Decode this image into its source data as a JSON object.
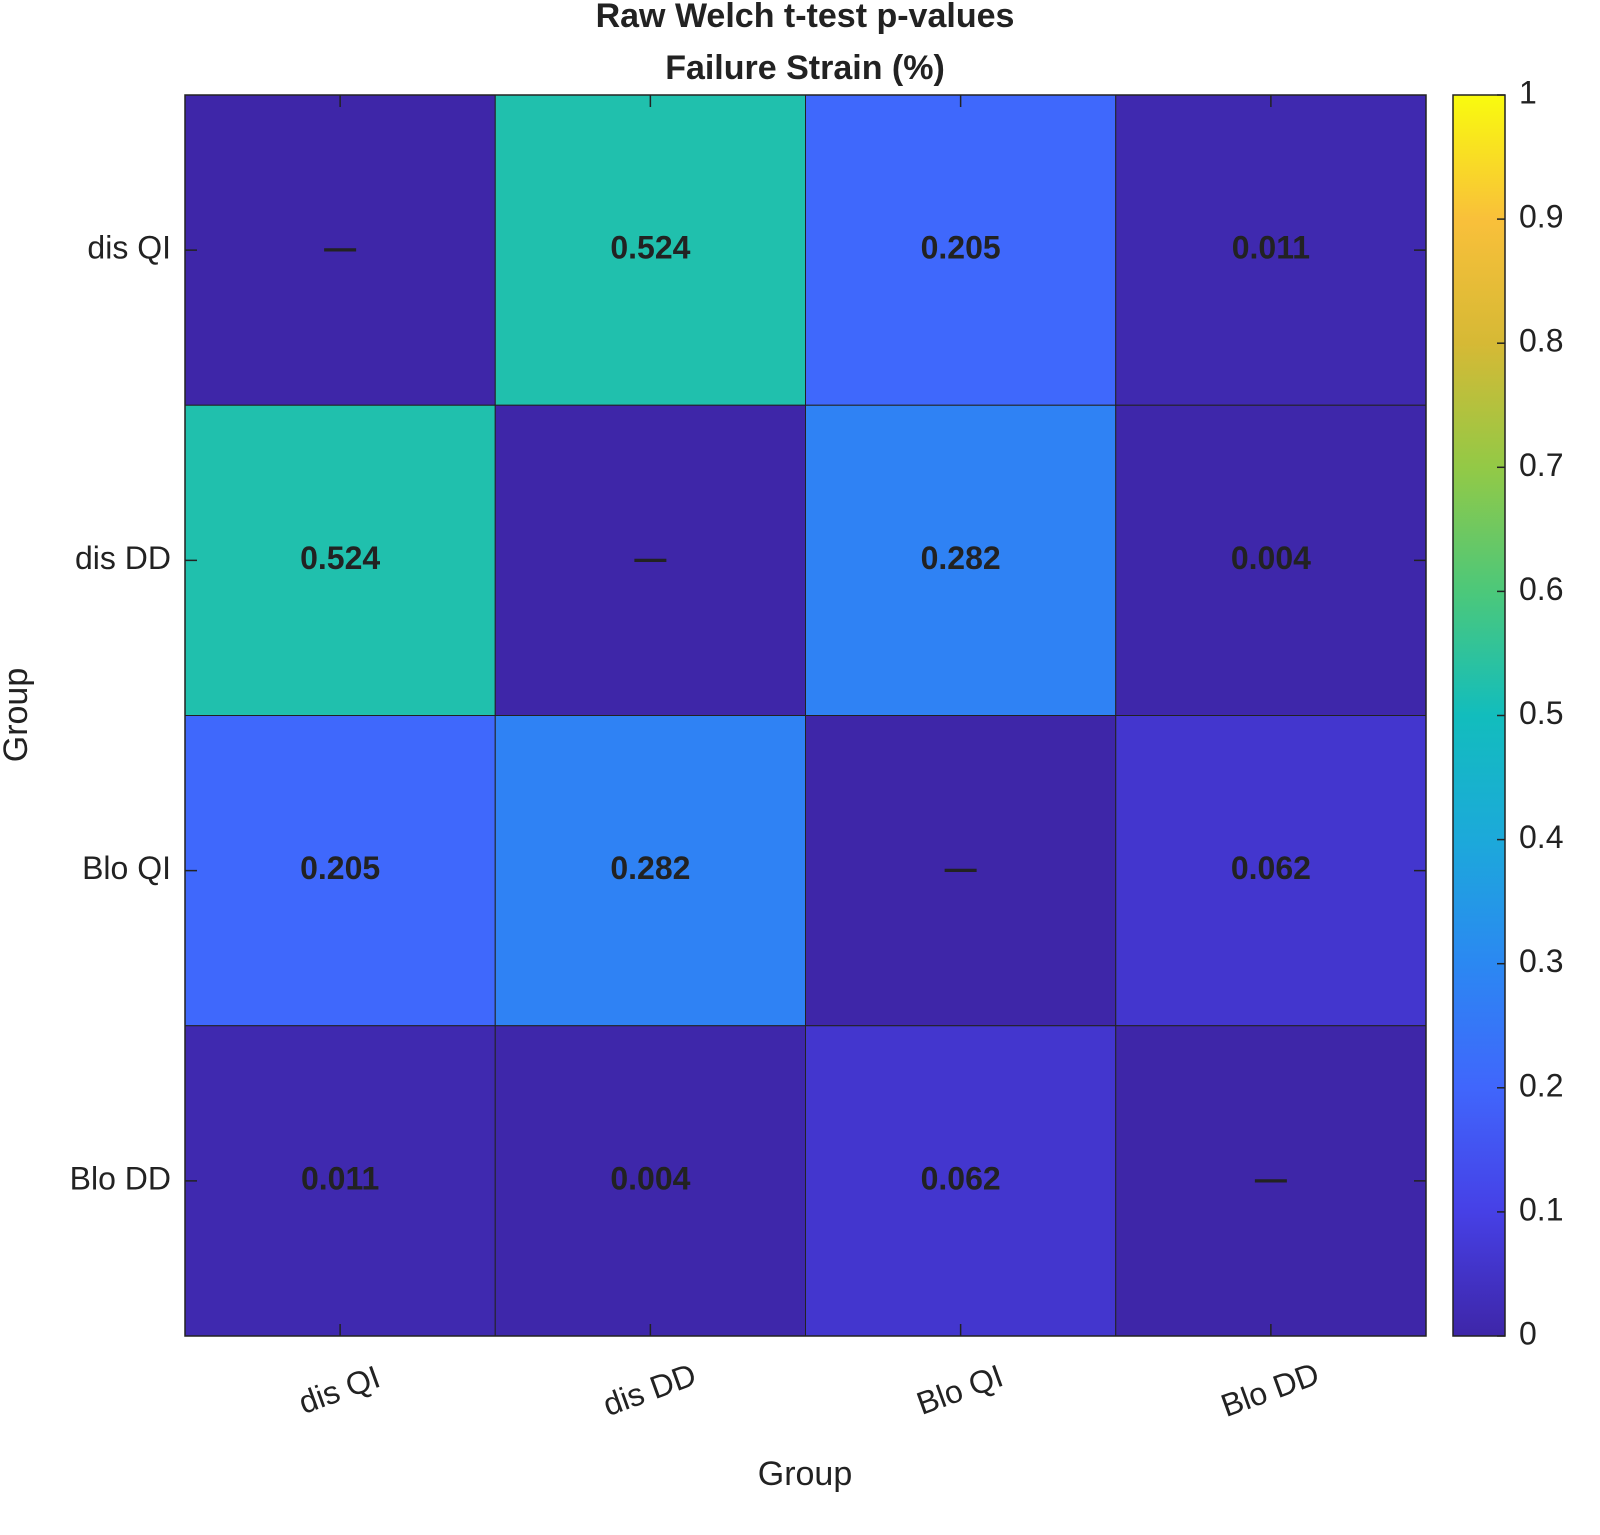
{
  "chart_data": {
    "type": "heatmap",
    "title": "Raw Welch t-test p-values",
    "subtitle": "Failure Strain (%)",
    "x_label": "Group",
    "y_label": "Group",
    "x_categories": [
      "dis QI",
      "dis DD",
      "Blo QI",
      "Blo DD"
    ],
    "y_categories": [
      "dis QI",
      "dis DD",
      "Blo QI",
      "Blo DD"
    ],
    "values": [
      [
        null,
        0.524,
        0.205,
        0.011
      ],
      [
        0.524,
        null,
        0.282,
        0.004
      ],
      [
        0.205,
        0.282,
        null,
        0.062
      ],
      [
        0.011,
        0.004,
        0.062,
        null
      ]
    ],
    "diagonal_label": "—",
    "clim": [
      0,
      1
    ],
    "cticks": [
      0,
      0.1,
      0.2,
      0.3,
      0.4,
      0.5,
      0.6,
      0.7,
      0.8,
      0.9,
      1
    ],
    "colormap": [
      "#3e26a8",
      "#4640e6",
      "#4066fc",
      "#2b88f2",
      "#1ca9da",
      "#12bdbd",
      "#4cc87a",
      "#93c946",
      "#d6b935",
      "#f9c03a",
      "#f9fb0e"
    ]
  }
}
